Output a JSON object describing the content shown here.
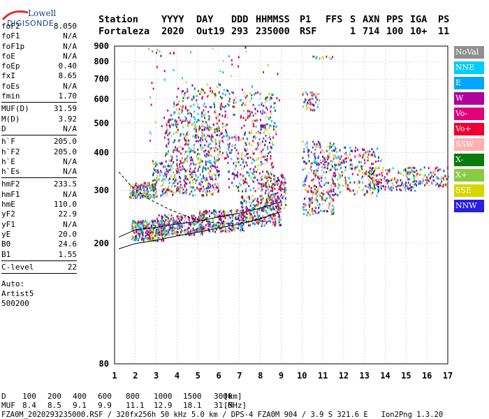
{
  "logo": {
    "line1": "Lowell",
    "line2": "DIGISONDE"
  },
  "header": {
    "labels": [
      "Station",
      "YYYY",
      "DAY",
      "DDD",
      "HHMMSS",
      "P1",
      "FFS",
      "S",
      "AXN",
      "PPS",
      "IGA",
      "PS"
    ],
    "values": [
      "Fortaleza",
      "2020",
      "Out19",
      "293",
      "235000",
      "RSF",
      "1",
      "714",
      "100",
      "10+",
      "11"
    ]
  },
  "params": {
    "group1": [
      {
        "k": "foF2",
        "v": "8.050"
      },
      {
        "k": "foF1",
        "v": "N/A"
      },
      {
        "k": "foF1p",
        "v": "N/A"
      },
      {
        "k": "foE",
        "v": "N/A"
      },
      {
        "k": "foEp",
        "v": "0.40"
      },
      {
        "k": "fxI",
        "v": "8.65"
      },
      {
        "k": "foEs",
        "v": "N/A"
      },
      {
        "k": "fmin",
        "v": "1.70"
      }
    ],
    "group2": [
      {
        "k": "MUF(D)",
        "v": "31.59"
      },
      {
        "k": "M(D)",
        "v": "3.92"
      },
      {
        "k": "D",
        "v": "N/A"
      }
    ],
    "group3": [
      {
        "k": "h`F",
        "v": "205.0"
      },
      {
        "k": "h`F2",
        "v": "205.0"
      },
      {
        "k": "h`E",
        "v": "N/A"
      },
      {
        "k": "h`Es",
        "v": "N/A"
      }
    ],
    "group4": [
      {
        "k": "hmF2",
        "v": "233.5"
      },
      {
        "k": "hmF1",
        "v": "N/A"
      },
      {
        "k": "hmE",
        "v": "110.0"
      },
      {
        "k": "yF2",
        "v": "22.9"
      },
      {
        "k": "yF1",
        "v": "N/A"
      },
      {
        "k": "yE",
        "v": "20.0"
      },
      {
        "k": "B0",
        "v": "24.6"
      },
      {
        "k": "B1",
        "v": "1.55"
      }
    ],
    "group5": [
      {
        "k": "C-level",
        "v": "22"
      }
    ],
    "auto_label": "Auto:",
    "artist": "Artist5",
    "artist_version": "500200"
  },
  "legend": [
    {
      "label": "NoVal",
      "color": "#909090",
      "text_color": "#ffffff"
    },
    {
      "label": "NNE",
      "color": "#00ccff",
      "text_color": "#ffffff"
    },
    {
      "label": "E",
      "color": "#00a6ff",
      "text_color": "#ffffff"
    },
    {
      "label": "W",
      "color": "#b0009c",
      "text_color": "#ffffff"
    },
    {
      "label": "Vo-",
      "color": "#e0007c",
      "text_color": "#ffffff"
    },
    {
      "label": "Vo+",
      "color": "#ee0033",
      "text_color": "#ffffff"
    },
    {
      "label": "SSW",
      "color": "#ffb0b0",
      "text_color": "#ffffff"
    },
    {
      "label": "X-",
      "color": "#0a7a0a",
      "text_color": "#ffffff"
    },
    {
      "label": "X+",
      "color": "#88cc44",
      "text_color": "#ffffff"
    },
    {
      "label": "SSE",
      "color": "#d6d600",
      "text_color": "#ffffff"
    },
    {
      "label": "NNW",
      "color": "#2a1ee0",
      "text_color": "#ffffff"
    }
  ],
  "footer": {
    "d_label": "D",
    "d_values": [
      "100",
      "200",
      "400",
      "600",
      "800",
      "1000",
      "1500",
      "3000"
    ],
    "d_unit": "[km]",
    "muf_label": "MUF",
    "muf_values": [
      "8.4",
      "8.5",
      "9.1",
      "9.9",
      "11.1",
      "12.9",
      "18.1",
      "31.6"
    ],
    "muf_unit": "[MHz]",
    "info": "FZA0M_2020293235000.RSF / 320fx256h 50 kHz 5.0 km / DPS-4 FZA0M 904 / 3.9 S 321.6 E   Ion2Png 1.3.20"
  },
  "chart_data": {
    "type": "scatter",
    "title": "",
    "xlabel": "",
    "ylabel": "",
    "xlim": [
      1,
      17
    ],
    "ylim": [
      80,
      900
    ],
    "y_scale": "log",
    "x_ticks": [
      1,
      2,
      3,
      4,
      5,
      6,
      7,
      8,
      9,
      10,
      11,
      12,
      13,
      14,
      15,
      16,
      17
    ],
    "y_ticks": [
      80,
      200,
      300,
      400,
      500,
      600,
      700,
      800,
      900
    ],
    "grid": "dashed",
    "trace_color": "#000000",
    "traces": [
      {
        "name": "lower-trace",
        "x": [
          1.2,
          2,
          3,
          4,
          5,
          6,
          7,
          8,
          9
        ],
        "y": [
          192,
          200,
          205,
          212,
          218,
          225,
          232,
          242,
          255
        ]
      },
      {
        "name": "upper-trace",
        "x": [
          1.2,
          2,
          3,
          4,
          5,
          6,
          7,
          8,
          9
        ],
        "y": [
          210,
          222,
          226,
          232,
          237,
          245,
          252,
          262,
          275
        ]
      }
    ],
    "ridge": {
      "x": [
        1.2,
        1.8,
        2.6,
        3.6,
        4.6,
        5.6,
        6.6,
        7.5,
        8.3
      ],
      "y": [
        345,
        310,
        282,
        260,
        244,
        235,
        233,
        236,
        244
      ]
    },
    "clusters": [
      {
        "x": [
          1.8,
          3.4
        ],
        "y": [
          205,
          240
        ],
        "n": 260
      },
      {
        "x": [
          3.0,
          5.2
        ],
        "y": [
          215,
          250
        ],
        "n": 280
      },
      {
        "x": [
          5.0,
          7.2
        ],
        "y": [
          220,
          260
        ],
        "n": 260
      },
      {
        "x": [
          7.0,
          9.0
        ],
        "y": [
          230,
          290
        ],
        "n": 260
      },
      {
        "x": [
          8.0,
          9.2
        ],
        "y": [
          260,
          340
        ],
        "n": 160
      },
      {
        "x": [
          2.8,
          6.0
        ],
        "y": [
          290,
          380
        ],
        "n": 360
      },
      {
        "x": [
          3.4,
          6.4
        ],
        "y": [
          380,
          520
        ],
        "n": 300
      },
      {
        "x": [
          3.8,
          6.8
        ],
        "y": [
          520,
          660
        ],
        "n": 130
      },
      {
        "x": [
          6.4,
          8.6
        ],
        "y": [
          300,
          460
        ],
        "n": 220
      },
      {
        "x": [
          7.0,
          8.8
        ],
        "y": [
          460,
          640
        ],
        "n": 120
      },
      {
        "x": [
          1.7,
          3.0
        ],
        "y": [
          285,
          320
        ],
        "n": 160
      },
      {
        "x": [
          10.0,
          11.5
        ],
        "y": [
          250,
          440
        ],
        "n": 320
      },
      {
        "x": [
          10.0,
          10.8
        ],
        "y": [
          555,
          640
        ],
        "n": 50
      },
      {
        "x": [
          10.5,
          11.6
        ],
        "y": [
          820,
          840
        ],
        "n": 12
      },
      {
        "x": [
          11.5,
          13.8
        ],
        "y": [
          290,
          420
        ],
        "n": 230
      },
      {
        "x": [
          13.2,
          15.4
        ],
        "y": [
          300,
          360
        ],
        "n": 160
      },
      {
        "x": [
          15.3,
          17.0
        ],
        "y": [
          310,
          360
        ],
        "n": 90
      },
      {
        "x": [
          2.5,
          9.0
        ],
        "y": [
          300,
          900
        ],
        "n": 140
      }
    ]
  }
}
